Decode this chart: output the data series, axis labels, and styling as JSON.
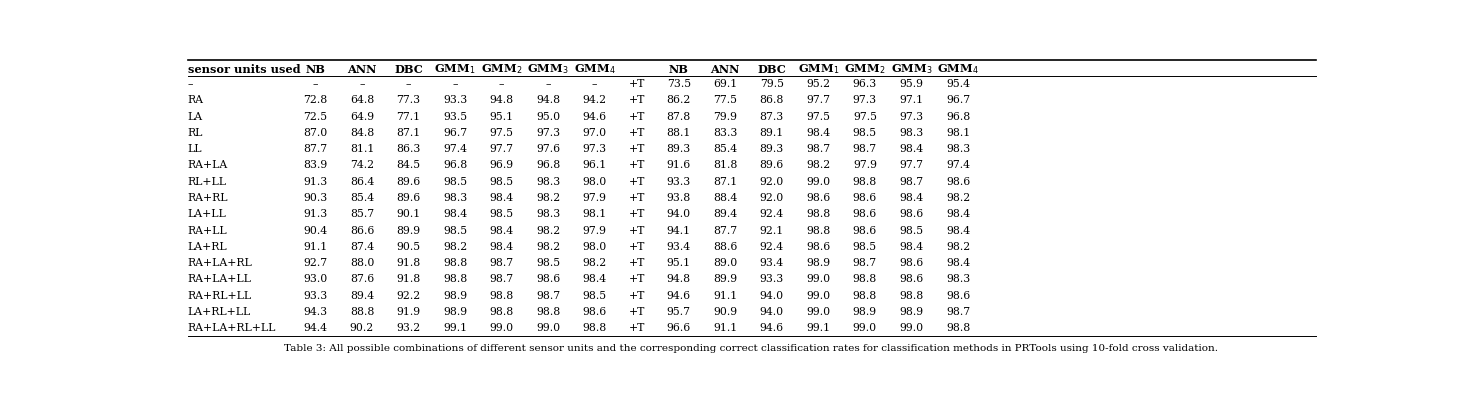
{
  "rows": [
    {
      "sensor": "–",
      "left": [
        "–",
        "–",
        "–",
        "–",
        "–",
        "–",
        "–"
      ],
      "mid": "+T",
      "right": [
        "73.5",
        "69.1",
        "79.5",
        "95.2",
        "96.3",
        "95.9",
        "95.4"
      ]
    },
    {
      "sensor": "RA",
      "left": [
        "72.8",
        "64.8",
        "77.3",
        "93.3",
        "94.8",
        "94.8",
        "94.2"
      ],
      "mid": "+T",
      "right": [
        "86.2",
        "77.5",
        "86.8",
        "97.7",
        "97.3",
        "97.1",
        "96.7"
      ]
    },
    {
      "sensor": "LA",
      "left": [
        "72.5",
        "64.9",
        "77.1",
        "93.5",
        "95.1",
        "95.0",
        "94.6"
      ],
      "mid": "+T",
      "right": [
        "87.8",
        "79.9",
        "87.3",
        "97.5",
        "97.5",
        "97.3",
        "96.8"
      ]
    },
    {
      "sensor": "RL",
      "left": [
        "87.0",
        "84.8",
        "87.1",
        "96.7",
        "97.5",
        "97.3",
        "97.0"
      ],
      "mid": "+T",
      "right": [
        "88.1",
        "83.3",
        "89.1",
        "98.4",
        "98.5",
        "98.3",
        "98.1"
      ]
    },
    {
      "sensor": "LL",
      "left": [
        "87.7",
        "81.1",
        "86.3",
        "97.4",
        "97.7",
        "97.6",
        "97.3"
      ],
      "mid": "+T",
      "right": [
        "89.3",
        "85.4",
        "89.3",
        "98.7",
        "98.7",
        "98.4",
        "98.3"
      ]
    },
    {
      "sensor": "RA+LA",
      "left": [
        "83.9",
        "74.2",
        "84.5",
        "96.8",
        "96.9",
        "96.8",
        "96.1"
      ],
      "mid": "+T",
      "right": [
        "91.6",
        "81.8",
        "89.6",
        "98.2",
        "97.9",
        "97.7",
        "97.4"
      ]
    },
    {
      "sensor": "RL+LL",
      "left": [
        "91.3",
        "86.4",
        "89.6",
        "98.5",
        "98.5",
        "98.3",
        "98.0"
      ],
      "mid": "+T",
      "right": [
        "93.3",
        "87.1",
        "92.0",
        "99.0",
        "98.8",
        "98.7",
        "98.6"
      ]
    },
    {
      "sensor": "RA+RL",
      "left": [
        "90.3",
        "85.4",
        "89.6",
        "98.3",
        "98.4",
        "98.2",
        "97.9"
      ],
      "mid": "+T",
      "right": [
        "93.8",
        "88.4",
        "92.0",
        "98.6",
        "98.6",
        "98.4",
        "98.2"
      ]
    },
    {
      "sensor": "LA+LL",
      "left": [
        "91.3",
        "85.7",
        "90.1",
        "98.4",
        "98.5",
        "98.3",
        "98.1"
      ],
      "mid": "+T",
      "right": [
        "94.0",
        "89.4",
        "92.4",
        "98.8",
        "98.6",
        "98.6",
        "98.4"
      ]
    },
    {
      "sensor": "RA+LL",
      "left": [
        "90.4",
        "86.6",
        "89.9",
        "98.5",
        "98.4",
        "98.2",
        "97.9"
      ],
      "mid": "+T",
      "right": [
        "94.1",
        "87.7",
        "92.1",
        "98.8",
        "98.6",
        "98.5",
        "98.4"
      ]
    },
    {
      "sensor": "LA+RL",
      "left": [
        "91.1",
        "87.4",
        "90.5",
        "98.2",
        "98.4",
        "98.2",
        "98.0"
      ],
      "mid": "+T",
      "right": [
        "93.4",
        "88.6",
        "92.4",
        "98.6",
        "98.5",
        "98.4",
        "98.2"
      ]
    },
    {
      "sensor": "RA+LA+RL",
      "left": [
        "92.7",
        "88.0",
        "91.8",
        "98.8",
        "98.7",
        "98.5",
        "98.2"
      ],
      "mid": "+T",
      "right": [
        "95.1",
        "89.0",
        "93.4",
        "98.9",
        "98.7",
        "98.6",
        "98.4"
      ]
    },
    {
      "sensor": "RA+LA+LL",
      "left": [
        "93.0",
        "87.6",
        "91.8",
        "98.8",
        "98.7",
        "98.6",
        "98.4"
      ],
      "mid": "+T",
      "right": [
        "94.8",
        "89.9",
        "93.3",
        "99.0",
        "98.8",
        "98.6",
        "98.3"
      ]
    },
    {
      "sensor": "RA+RL+LL",
      "left": [
        "93.3",
        "89.4",
        "92.2",
        "98.9",
        "98.8",
        "98.7",
        "98.5"
      ],
      "mid": "+T",
      "right": [
        "94.6",
        "91.1",
        "94.0",
        "99.0",
        "98.8",
        "98.8",
        "98.6"
      ]
    },
    {
      "sensor": "LA+RL+LL",
      "left": [
        "94.3",
        "88.8",
        "91.9",
        "98.9",
        "98.8",
        "98.8",
        "98.6"
      ],
      "mid": "+T",
      "right": [
        "95.7",
        "90.9",
        "94.0",
        "99.0",
        "98.9",
        "98.9",
        "98.7"
      ]
    },
    {
      "sensor": "RA+LA+RL+LL",
      "left": [
        "94.4",
        "90.2",
        "93.2",
        "99.1",
        "99.0",
        "99.0",
        "98.8"
      ],
      "mid": "+T",
      "right": [
        "96.6",
        "91.1",
        "94.6",
        "99.1",
        "99.0",
        "99.0",
        "98.8"
      ]
    }
  ],
  "left_headers": [
    "sensor units used",
    "NB",
    "ANN",
    "DBC",
    "GMM_1",
    "GMM_2",
    "GMM_3",
    "GMM_4"
  ],
  "right_headers": [
    "NB",
    "ANN",
    "DBC",
    "GMM_1",
    "GMM_2",
    "GMM_3",
    "GMM_4"
  ],
  "title": "Table 3: All possible combinations of different sensor units and the corresponding correct classification rates for classification methods in PRTools using 10-fold cross validation.",
  "font_size": 7.8,
  "header_font_size": 8.2,
  "title_font_size": 7.5
}
